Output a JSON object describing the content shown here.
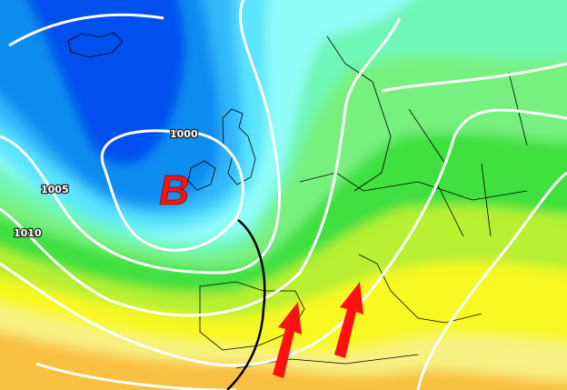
{
  "map": {
    "pressure_center": {
      "letter": "B",
      "type": "low"
    },
    "isobar_labels": [
      "1000",
      "1005",
      "1010"
    ],
    "colors": {
      "deep_blue": "#0050ee",
      "blue": "#0a8cf0",
      "mid_blue": "#30b8fa",
      "cyan": "#5ce4fc",
      "pale_cyan": "#90fcf8",
      "aqua_green": "#70f8b8",
      "light_green": "#78f080",
      "green": "#40e040",
      "yellow_green": "#b8f030",
      "yellow": "#f8f820",
      "pale_yellow": "#f8f080",
      "orange": "#f8c040",
      "isobar": "#ffffff",
      "arrows": "#ff1010",
      "front": "#000000"
    },
    "arrows": [
      {
        "direction": "north"
      },
      {
        "direction": "north"
      }
    ]
  }
}
